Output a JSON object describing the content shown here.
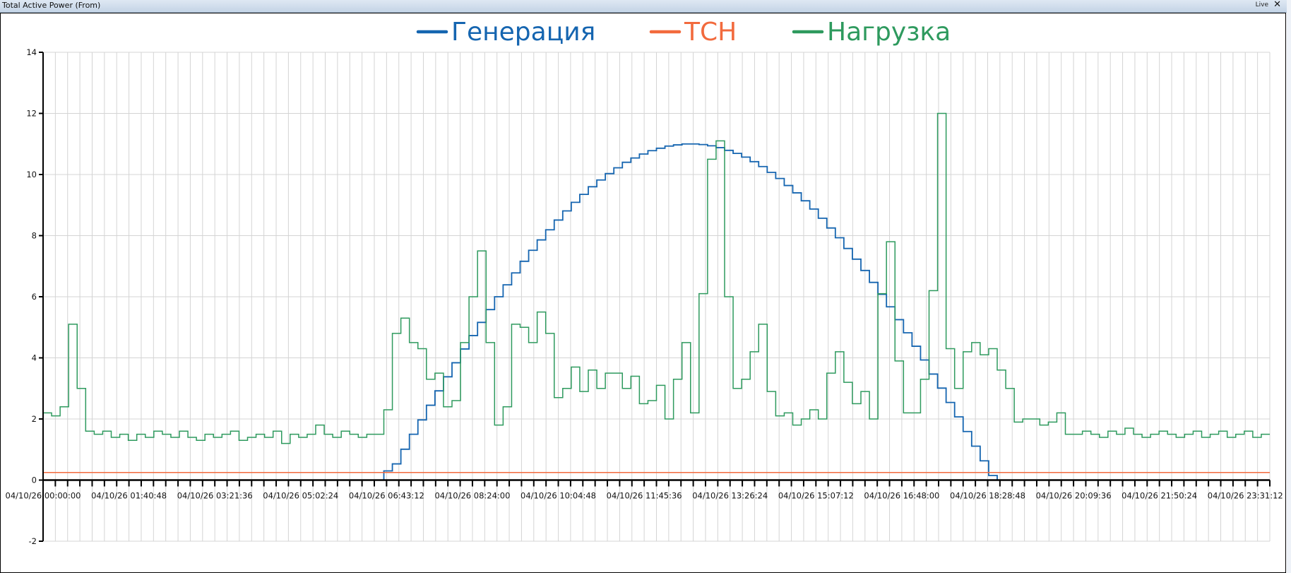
{
  "window": {
    "title": "Total Active Power (From)",
    "live_label": "Live",
    "close_icon": "close-icon"
  },
  "chart_data": {
    "type": "line",
    "step": true,
    "title": "",
    "xlabel": "",
    "ylabel": "",
    "x_start": "04/10/26 00:00:00",
    "interval_minutes": 10,
    "xlim_hours": [
      0,
      24
    ],
    "ylim": [
      -2,
      14
    ],
    "yticks": [
      -2,
      0,
      2,
      4,
      6,
      8,
      10,
      12,
      14
    ],
    "xtick_labels": [
      "04/10/26 00:00:00",
      "04/10/26 01:40:48",
      "04/10/26 03:21:36",
      "04/10/26 05:02:24",
      "04/10/26 06:43:12",
      "04/10/26 08:24:00",
      "04/10/26 10:04:48",
      "04/10/26 11:45:36",
      "04/10/26 13:26:24",
      "04/10/26 15:07:12",
      "04/10/26 16:48:00",
      "04/10/26 18:28:48",
      "04/10/26 20:09:36",
      "04/10/26 21:50:24",
      "04/10/26 23:31:12"
    ],
    "grid": true,
    "legend_position": "top-center",
    "series": [
      {
        "name": "Генерация",
        "color": "#1565b0",
        "values": [
          0,
          0,
          0,
          0,
          0,
          0,
          0,
          0,
          0,
          0,
          0,
          0,
          0,
          0,
          0,
          0,
          0,
          0,
          0,
          0,
          0,
          0,
          0,
          0,
          0,
          0,
          0,
          0,
          0,
          0,
          0,
          0,
          0,
          0,
          0,
          0,
          0,
          0,
          0,
          0,
          0.3,
          0.53,
          1.01,
          1.5,
          1.97,
          2.45,
          2.92,
          3.38,
          3.84,
          4.29,
          4.73,
          5.16,
          5.58,
          6.0,
          6.39,
          6.78,
          7.16,
          7.52,
          7.86,
          8.19,
          8.51,
          8.81,
          9.09,
          9.35,
          9.6,
          9.82,
          10.03,
          10.22,
          10.4,
          10.54,
          10.67,
          10.78,
          10.86,
          10.93,
          10.97,
          11.0,
          11.0,
          10.98,
          10.94,
          10.88,
          10.79,
          10.69,
          10.57,
          10.42,
          10.26,
          10.07,
          9.87,
          9.64,
          9.4,
          9.14,
          8.87,
          8.57,
          8.25,
          7.93,
          7.58,
          7.23,
          6.86,
          6.47,
          6.08,
          5.67,
          5.25,
          4.82,
          4.38,
          3.93,
          3.47,
          3.01,
          2.54,
          2.07,
          1.59,
          1.11,
          0.63,
          0.15,
          0,
          0,
          0,
          0,
          0,
          0,
          0,
          0,
          0,
          0,
          0,
          0,
          0,
          0,
          0,
          0,
          0,
          0,
          0,
          0,
          0,
          0,
          0,
          0,
          0,
          0,
          0,
          0,
          0,
          0,
          0,
          0
        ]
      },
      {
        "name": "ТСН",
        "color": "#f26a3d",
        "constant": 0.25
      },
      {
        "name": "Нагрузка",
        "color": "#2e9a5e",
        "values": [
          2.2,
          2.1,
          2.4,
          5.1,
          3.0,
          1.6,
          1.5,
          1.6,
          1.4,
          1.5,
          1.3,
          1.5,
          1.4,
          1.6,
          1.5,
          1.4,
          1.6,
          1.4,
          1.3,
          1.5,
          1.4,
          1.5,
          1.6,
          1.3,
          1.4,
          1.5,
          1.4,
          1.6,
          1.2,
          1.5,
          1.4,
          1.5,
          1.8,
          1.5,
          1.4,
          1.6,
          1.5,
          1.4,
          1.5,
          1.5,
          2.3,
          4.8,
          5.3,
          4.5,
          4.3,
          3.3,
          3.5,
          2.4,
          2.6,
          4.5,
          6.0,
          7.5,
          4.5,
          1.8,
          2.4,
          5.1,
          5.0,
          4.5,
          5.5,
          4.8,
          2.7,
          3.0,
          3.7,
          2.9,
          3.6,
          3.0,
          3.5,
          3.5,
          3.0,
          3.4,
          2.5,
          2.6,
          3.1,
          2.0,
          3.3,
          4.5,
          2.2,
          6.1,
          10.5,
          11.1,
          6.0,
          3.0,
          3.3,
          4.2,
          5.1,
          2.9,
          2.1,
          2.2,
          1.8,
          2.0,
          2.3,
          2.0,
          3.5,
          4.2,
          3.2,
          2.5,
          2.9,
          2.0,
          6.1,
          7.8,
          3.9,
          2.2,
          2.2,
          3.3,
          6.2,
          12.0,
          4.3,
          3.0,
          4.2,
          4.5,
          4.1,
          4.3,
          3.6,
          3.0,
          1.9,
          2.0,
          2.0,
          1.8,
          1.9,
          2.2,
          1.5,
          1.5,
          1.6,
          1.5,
          1.4,
          1.6,
          1.5,
          1.7,
          1.5,
          1.4,
          1.5,
          1.6,
          1.5,
          1.4,
          1.5,
          1.6,
          1.4,
          1.5,
          1.6,
          1.4,
          1.5,
          1.6,
          1.4,
          1.5
        ]
      }
    ]
  }
}
